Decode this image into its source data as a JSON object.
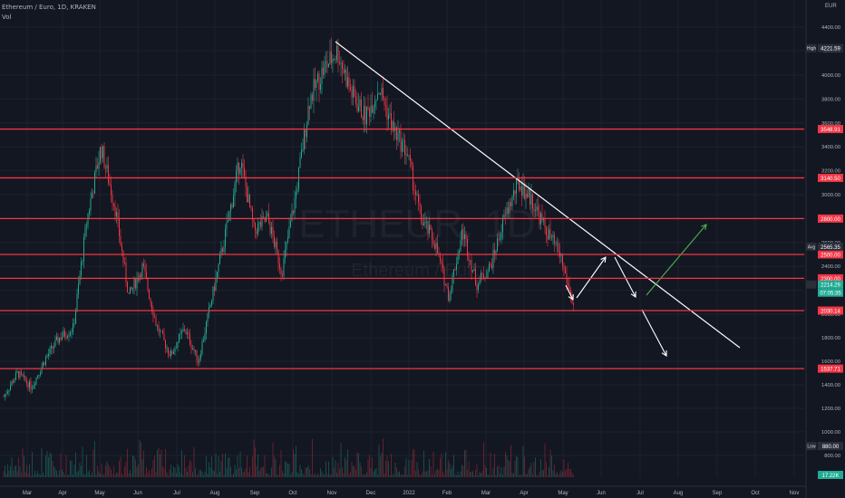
{
  "header": {
    "symbol_line": "Ethereum / Euro, 1D, KRAKEN",
    "vol_label": "Vol",
    "currency": "EUR"
  },
  "watermark": {
    "ticker": "ETHEUR, 1D",
    "name": "Ethereum / Euro"
  },
  "chart_data": {
    "type": "candlestick",
    "symbol": "ETHEUR",
    "interval": "1D",
    "exchange": "KRAKEN",
    "x_tick_labels": [
      "Mar",
      "Apr",
      "May",
      "Jun",
      "Jul",
      "Aug",
      "Sep",
      "Oct",
      "Nov",
      "Dec",
      "2022",
      "Feb",
      "Mar",
      "Apr",
      "May",
      "Jun",
      "Jul",
      "Aug",
      "Sep",
      "Oct",
      "Nov"
    ],
    "y_tick_labels": [
      "4400.00",
      "4200.00",
      "4000.00",
      "3800.00",
      "3600.00",
      "3400.00",
      "3200.00",
      "3000.00",
      "2800.00",
      "2600.00",
      "2400.00",
      "2200.00",
      "2000.00",
      "1800.00",
      "1600.00",
      "1400.00",
      "1200.00",
      "1000.00",
      "800.00"
    ],
    "ylim": [
      700,
      4420
    ],
    "price_path": [
      [
        "Mar",
        1300
      ],
      [
        "Mar",
        1500
      ],
      [
        "Mar",
        1380
      ],
      [
        "Apr",
        1620
      ],
      [
        "Apr",
        1800
      ],
      [
        "Apr",
        1880
      ],
      [
        "May",
        2800
      ],
      [
        "May",
        3400
      ],
      [
        "May",
        2900
      ],
      [
        "May",
        2150
      ],
      [
        "Jun",
        2400
      ],
      [
        "Jun",
        1900
      ],
      [
        "Jul",
        1650
      ],
      [
        "Jul",
        1880
      ],
      [
        "Jul",
        1600
      ],
      [
        "Aug",
        2150
      ],
      [
        "Aug",
        2700
      ],
      [
        "Sep",
        3300
      ],
      [
        "Sep",
        2700
      ],
      [
        "Sep",
        2800
      ],
      [
        "Oct",
        2350
      ],
      [
        "Oct",
        3000
      ],
      [
        "Oct",
        3800
      ],
      [
        "Nov",
        4050
      ],
      [
        "Nov",
        4200
      ],
      [
        "Nov",
        3850
      ],
      [
        "Dec",
        3650
      ],
      [
        "Dec",
        3900
      ],
      [
        "Dec",
        3550
      ],
      [
        "2022",
        3350
      ],
      [
        "2022",
        2800
      ],
      [
        "2022",
        2600
      ],
      [
        "Feb",
        2150
      ],
      [
        "Feb",
        2700
      ],
      [
        "Feb",
        2250
      ],
      [
        "Mar",
        2400
      ],
      [
        "Mar",
        2800
      ],
      [
        "Apr",
        3100
      ],
      [
        "Apr",
        2950
      ],
      [
        "Apr",
        2700
      ],
      [
        "May",
        2500
      ],
      [
        "May",
        2050
      ]
    ],
    "horizontal_levels": [
      3548.9,
      3140.5,
      2800.0,
      2500.0,
      2300.0,
      2030.14,
      1537.71
    ],
    "level_labels": [
      "3548.91",
      "3140.50",
      "2800.00",
      "2500.00",
      "2300.00",
      "2030.14",
      "1537.71"
    ],
    "markers": [
      {
        "label": "High",
        "value": 4221.59,
        "text": "4221.59"
      },
      {
        "label": "Avg",
        "value": 2565.35,
        "text": "2565.35"
      },
      {
        "label": "Last",
        "value": 2214.29,
        "text": "2214.29"
      },
      {
        "label": "Countdown",
        "value": 2214.29,
        "text": "07:05:35"
      },
      {
        "label": "Low",
        "value": 880.0,
        "text": "880.00"
      }
    ],
    "volume_label": "17.22K",
    "colors": {
      "up": "#22ab94",
      "down": "#f23645",
      "level": "#f23645",
      "trend": "#ffffff",
      "bull_arrow": "#4caf50"
    }
  }
}
